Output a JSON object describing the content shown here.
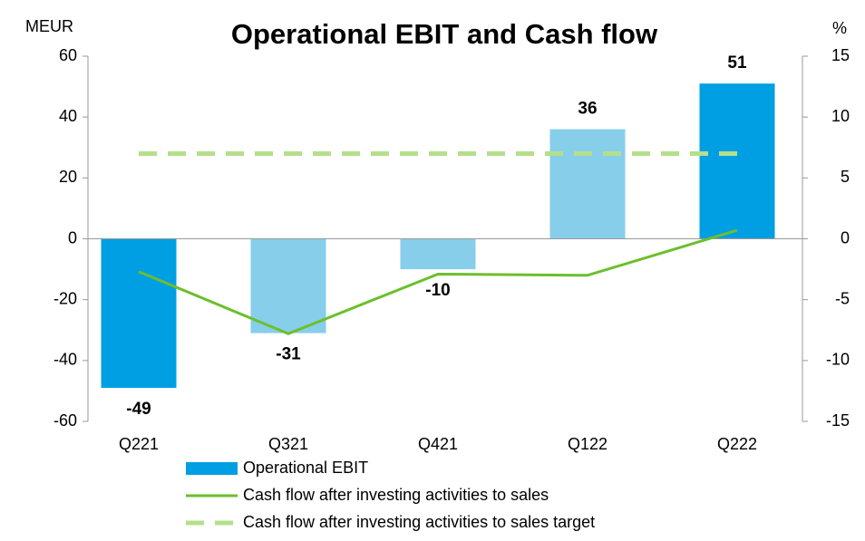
{
  "chart_data": {
    "type": "bar",
    "title": "Operational EBIT and Cash flow",
    "ylabel": "MEUR",
    "y2label": "%",
    "categories": [
      "Q221",
      "Q321",
      "Q421",
      "Q122",
      "Q222"
    ],
    "series": [
      {
        "name": "Operational EBIT",
        "type": "bar",
        "color": "#009fe3",
        "bar_colors": [
          "#009fe3",
          "#87ceeb",
          "#87ceeb",
          "#87ceeb",
          "#009fe3"
        ],
        "values": [
          -49,
          -31,
          -10,
          36,
          51
        ]
      },
      {
        "name": "Cash flow after investing activities to sales",
        "type": "line",
        "axis": "y2",
        "color": "#6cbf2c",
        "values": [
          -2.7,
          -7.8,
          -2.9,
          -3.0,
          0.7
        ]
      },
      {
        "name": "Cash flow after investing activities to sales target",
        "type": "line",
        "axis": "y2",
        "dashed": true,
        "color": "#b4df8c",
        "values": [
          7,
          7,
          7,
          7,
          7
        ]
      }
    ],
    "ylim": [
      -60,
      60
    ],
    "yticks": [
      -60,
      -40,
      -20,
      0,
      20,
      40,
      60
    ],
    "y2lim": [
      -15,
      15
    ],
    "y2ticks": [
      -15,
      -10,
      -5,
      0,
      5,
      10,
      15
    ]
  }
}
